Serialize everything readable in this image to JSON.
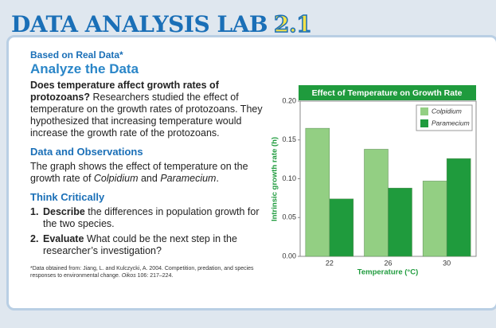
{
  "header": {
    "title": "DATA ANALYSIS LAB",
    "number": "2.1"
  },
  "label": "Based on Real Data*",
  "heading": "Analyze the Data",
  "intro": {
    "question": "Does temperature affect growth rates of protozoans?",
    "text": "Researchers studied the effect of temperature on the growth rates of protozoans. They hypothesized that increasing temperature would increase the growth rate of the protozoans."
  },
  "data_section": {
    "heading": "Data and Observations",
    "text": [
      "The graph shows the effect of temperature on the growth rate of ",
      "Colpidium",
      " and ",
      "Paramecium",
      "."
    ]
  },
  "think": {
    "heading": "Think Critically",
    "items": [
      {
        "number": "1.",
        "lead": "Describe",
        "text": "the differences in population growth for the two species."
      },
      {
        "number": "2.",
        "lead": "Evaluate",
        "text": "What could be the next step in the researcher’s investigation?"
      }
    ]
  },
  "footnote": [
    "*Data obtained from: Jiang, L. and Kulczycki, A. 2004. Competition, predation, and species responses to environmental change. ",
    "Oikos",
    " 106: 217–224."
  ],
  "chart_data": {
    "type": "bar",
    "title": "Effect of Temperature on Growth Rate",
    "x_label": "Temperature (°C)",
    "y_label": "Intrinsic growth rate (h)",
    "categories": [
      "22",
      "26",
      "30"
    ],
    "series": [
      {
        "name": "Colpidium",
        "color": "#93cf83",
        "values": [
          0.165,
          0.138,
          0.097
        ]
      },
      {
        "name": "Paramecium",
        "color": "#1f9b3d",
        "values": [
          0.074,
          0.088,
          0.126
        ]
      }
    ],
    "ylim": [
      0,
      0.2
    ],
    "yticks": [
      {
        "value": 0,
        "label": "0.00"
      },
      {
        "value": 0.05,
        "label": "0.05"
      },
      {
        "value": 0.1,
        "label": "0.10"
      },
      {
        "value": 0.15,
        "label": "0.15"
      },
      {
        "value": 0.2,
        "label": "0.20"
      }
    ],
    "legend": "upper right"
  }
}
